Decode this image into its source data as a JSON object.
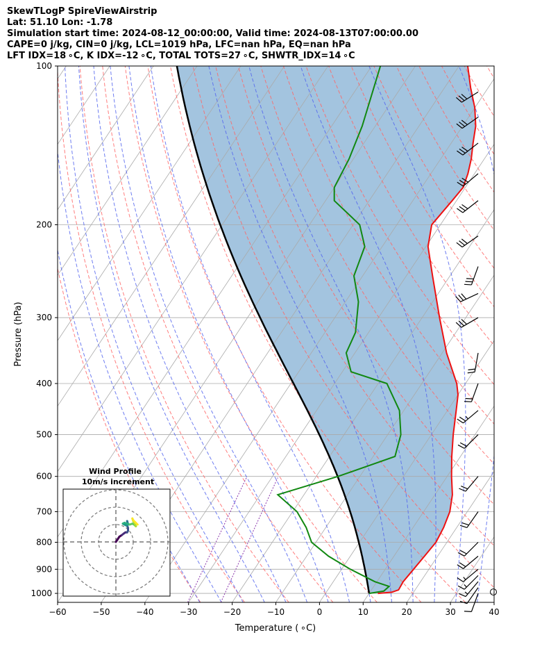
{
  "header": {
    "line1": "SkewTLogP SpireViewAirstrip",
    "line2": "Lat: 51.10   Lon: -1.78",
    "line3": "Simulation start time: 2024-08-12_00:00:00, Valid time: 2024-08-13T07:00:00.00",
    "line4": "CAPE=0 j/kg, CIN=0 j/kg, LCL=1019 hPa, LFC=nan hPa, EQ=nan hPa",
    "line5": "LFT IDX=18 ∘C, K IDX=-12 ∘C, TOTAL TOTS=27 ∘C, SHWTR_IDX=14 ∘C"
  },
  "chart_data": {
    "type": "skewt",
    "xlabel": "Temperature ( ∘C)",
    "ylabel": "Pressure (hPa)",
    "xlim": [
      -60,
      40
    ],
    "ylim_hpa": [
      1040,
      100
    ],
    "x_ticks": [
      -60,
      -50,
      -40,
      -30,
      -20,
      -10,
      0,
      10,
      20,
      30,
      40
    ],
    "x_tick_labels": [
      "−60",
      "−50",
      "−40",
      "−30",
      "−20",
      "−10",
      "0",
      "10",
      "20",
      "30",
      "40"
    ],
    "y_ticks": [
      1000,
      900,
      800,
      700,
      600,
      500,
      400,
      300,
      200,
      100
    ],
    "colors": {
      "temperature": "#ee1111",
      "dewpoint": "#118811",
      "parcel": "#000000",
      "shade": "#a3c4df",
      "dry_adiabat": "#ff6666",
      "moist_adiabat": "#5566ee",
      "mixing_ratio": "#8833aa",
      "isotherm": "#aaaaaa",
      "isobar": "#aaaaaa"
    },
    "temperature_profile": [
      {
        "p": 1000,
        "t": 12.0
      },
      {
        "p": 995,
        "t": 15.0
      },
      {
        "p": 985,
        "t": 16.2
      },
      {
        "p": 950,
        "t": 16.0
      },
      {
        "p": 900,
        "t": 16.5
      },
      {
        "p": 850,
        "t": 17.0
      },
      {
        "p": 800,
        "t": 17.5
      },
      {
        "p": 750,
        "t": 17.0
      },
      {
        "p": 700,
        "t": 16.0
      },
      {
        "p": 650,
        "t": 14.0
      },
      {
        "p": 600,
        "t": 11.0
      },
      {
        "p": 550,
        "t": 8.0
      },
      {
        "p": 500,
        "t": 5.0
      },
      {
        "p": 450,
        "t": 2.0
      },
      {
        "p": 420,
        "t": 0.0
      },
      {
        "p": 400,
        "t": -2.0
      },
      {
        "p": 350,
        "t": -9.0
      },
      {
        "p": 300,
        "t": -16.0
      },
      {
        "p": 250,
        "t": -24.0
      },
      {
        "p": 220,
        "t": -29.5
      },
      {
        "p": 200,
        "t": -32.0
      },
      {
        "p": 180,
        "t": -31.0
      },
      {
        "p": 170,
        "t": -30.5
      },
      {
        "p": 160,
        "t": -31.5
      },
      {
        "p": 150,
        "t": -33.0
      },
      {
        "p": 140,
        "t": -35.0
      },
      {
        "p": 130,
        "t": -37.0
      },
      {
        "p": 120,
        "t": -40.0
      },
      {
        "p": 110,
        "t": -44.0
      },
      {
        "p": 100,
        "t": -48.0
      }
    ],
    "dewpoint_profile": [
      {
        "p": 1000,
        "t": 10.0
      },
      {
        "p": 990,
        "t": 13.0
      },
      {
        "p": 970,
        "t": 13.5
      },
      {
        "p": 950,
        "t": 9.5
      },
      {
        "p": 900,
        "t": 2.0
      },
      {
        "p": 850,
        "t": -5.0
      },
      {
        "p": 800,
        "t": -11.0
      },
      {
        "p": 750,
        "t": -14.5
      },
      {
        "p": 700,
        "t": -19.0
      },
      {
        "p": 650,
        "t": -26.0
      },
      {
        "p": 600,
        "t": -15.0
      },
      {
        "p": 550,
        "t": -5.0
      },
      {
        "p": 500,
        "t": -7.0
      },
      {
        "p": 450,
        "t": -11.0
      },
      {
        "p": 400,
        "t": -18.0
      },
      {
        "p": 380,
        "t": -28.0
      },
      {
        "p": 350,
        "t": -32.0
      },
      {
        "p": 320,
        "t": -33.0
      },
      {
        "p": 280,
        "t": -37.0
      },
      {
        "p": 250,
        "t": -42.0
      },
      {
        "p": 220,
        "t": -44.0
      },
      {
        "p": 200,
        "t": -48.5
      },
      {
        "p": 180,
        "t": -58.0
      },
      {
        "p": 170,
        "t": -60.0
      },
      {
        "p": 150,
        "t": -61.0
      },
      {
        "p": 130,
        "t": -63.0
      },
      {
        "p": 100,
        "t": -68.0
      }
    ],
    "parcel_start": {
      "p": 1000,
      "t": 10.0,
      "td": 10.0
    },
    "wind_barbs": [
      {
        "p": 1000,
        "spd": 8,
        "dir": 200
      },
      {
        "p": 975,
        "spd": 12,
        "dir": 215
      },
      {
        "p": 950,
        "spd": 14,
        "dir": 220
      },
      {
        "p": 925,
        "spd": 15,
        "dir": 225
      },
      {
        "p": 900,
        "spd": 17,
        "dir": 230
      },
      {
        "p": 850,
        "spd": 20,
        "dir": 230
      },
      {
        "p": 800,
        "spd": 20,
        "dir": 225
      },
      {
        "p": 700,
        "spd": 18,
        "dir": 215
      },
      {
        "p": 600,
        "spd": 20,
        "dir": 220
      },
      {
        "p": 500,
        "spd": 22,
        "dir": 225
      },
      {
        "p": 450,
        "spd": 24,
        "dir": 230
      },
      {
        "p": 400,
        "spd": 22,
        "dir": 200
      },
      {
        "p": 350,
        "spd": 20,
        "dir": 190
      },
      {
        "p": 300,
        "spd": 30,
        "dir": 240
      },
      {
        "p": 270,
        "spd": 30,
        "dir": 245
      },
      {
        "p": 240,
        "spd": 28,
        "dir": 200
      },
      {
        "p": 210,
        "spd": 32,
        "dir": 235
      },
      {
        "p": 180,
        "spd": 32,
        "dir": 232
      },
      {
        "p": 160,
        "spd": 30,
        "dir": 230
      },
      {
        "p": 140,
        "spd": 30,
        "dir": 232
      },
      {
        "p": 125,
        "spd": 32,
        "dir": 235
      },
      {
        "p": 112,
        "spd": 32,
        "dir": 238
      }
    ],
    "inset": {
      "title": "Wind Profile",
      "subtitle": "10m/s increment",
      "rings": [
        10,
        20,
        30
      ],
      "hodograph": [
        [
          0,
          0
        ],
        [
          1,
          1.5
        ],
        [
          2,
          3
        ],
        [
          3.5,
          4
        ],
        [
          4.5,
          4.8
        ],
        [
          5.5,
          5.5
        ],
        [
          6.5,
          5.5
        ],
        [
          7,
          6.5
        ],
        [
          7,
          8
        ],
        [
          6.5,
          9.5
        ],
        [
          6.8,
          10.8
        ],
        [
          6.5,
          12
        ],
        [
          7,
          10
        ],
        [
          6,
          9.5
        ],
        [
          5,
          10
        ],
        [
          4,
          10.5
        ],
        [
          5,
          11
        ],
        [
          6.5,
          10.5
        ],
        [
          8,
          10
        ],
        [
          9.5,
          10.5
        ],
        [
          10.5,
          10
        ],
        [
          11.5,
          9
        ],
        [
          11,
          10.5
        ],
        [
          10,
          12
        ],
        [
          9.5,
          13.5
        ],
        [
          10,
          12.5
        ],
        [
          11.5,
          11
        ],
        [
          12.5,
          10
        ]
      ]
    }
  }
}
